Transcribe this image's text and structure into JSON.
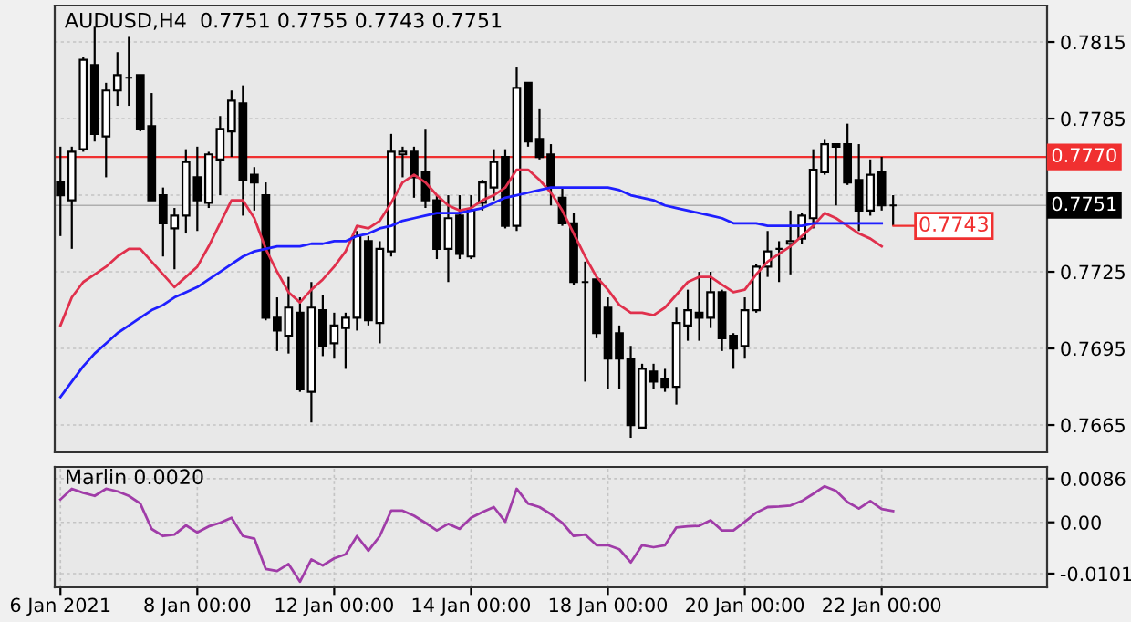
{
  "chart_data": [
    {
      "type": "candlestick",
      "title": "AUDUSD,H4  0.7751 0.7755 0.7743 0.7751",
      "categories": [
        null,
        null,
        null,
        null,
        null,
        null,
        null,
        null,
        null,
        null,
        null,
        null,
        null,
        null,
        null,
        null,
        null,
        null,
        null,
        null,
        null,
        null,
        null,
        null,
        null,
        null,
        null,
        null,
        null,
        null,
        null,
        null,
        null,
        null,
        null,
        null,
        null,
        null,
        null,
        null,
        null,
        null,
        null,
        null,
        null,
        null,
        null,
        null,
        null,
        null,
        null,
        null,
        null,
        null,
        null,
        null,
        null,
        null,
        null,
        null,
        null,
        null,
        null,
        null,
        null,
        null,
        null,
        null,
        null,
        null,
        null,
        null,
        null,
        null
      ],
      "ohlc": [
        [
          0.776,
          0.7774,
          0.7739,
          0.7755
        ],
        [
          0.7753,
          0.7774,
          0.7734,
          0.7772
        ],
        [
          0.7773,
          0.7809,
          0.7772,
          0.7808
        ],
        [
          0.7806,
          0.7821,
          0.7776,
          0.7779
        ],
        [
          0.7778,
          0.7799,
          0.7762,
          0.7796
        ],
        [
          0.7796,
          0.7811,
          0.779,
          0.7802
        ],
        [
          0.7801,
          0.7817,
          0.779,
          0.7801
        ],
        [
          0.7802,
          0.7802,
          0.778,
          0.7781
        ],
        [
          0.7782,
          0.7795,
          0.7753,
          0.7753
        ],
        [
          0.7755,
          0.7758,
          0.7731,
          0.7744
        ],
        [
          0.7742,
          0.775,
          0.7726,
          0.7747
        ],
        [
          0.7747,
          0.7773,
          0.774,
          0.7768
        ],
        [
          0.7762,
          0.7774,
          0.7741,
          0.7753
        ],
        [
          0.7752,
          0.7772,
          0.775,
          0.7771
        ],
        [
          0.7769,
          0.7786,
          0.7755,
          0.7781
        ],
        [
          0.778,
          0.7796,
          0.777,
          0.7792
        ],
        [
          0.7791,
          0.7798,
          0.7747,
          0.7761
        ],
        [
          0.7763,
          0.7766,
          0.7749,
          0.776
        ],
        [
          0.7755,
          0.776,
          0.7706,
          0.7707
        ],
        [
          0.7707,
          0.7715,
          0.7694,
          0.7702
        ],
        [
          0.77,
          0.7723,
          0.7693,
          0.7711
        ],
        [
          0.7709,
          0.7715,
          0.7678,
          0.7679
        ],
        [
          0.7678,
          0.7721,
          0.7666,
          0.7711
        ],
        [
          0.771,
          0.7716,
          0.7692,
          0.7696
        ],
        [
          0.7697,
          0.7709,
          0.7691,
          0.7704
        ],
        [
          0.7703,
          0.7709,
          0.7687,
          0.7707
        ],
        [
          0.7707,
          0.7741,
          0.7702,
          0.7739
        ],
        [
          0.7737,
          0.7739,
          0.7704,
          0.7706
        ],
        [
          0.7705,
          0.7737,
          0.7697,
          0.7734
        ],
        [
          0.7733,
          0.7779,
          0.7731,
          0.7772
        ],
        [
          0.7771,
          0.7774,
          0.7762,
          0.7772
        ],
        [
          0.7772,
          0.7774,
          0.7754,
          0.7762
        ],
        [
          0.7764,
          0.7781,
          0.775,
          0.7753
        ],
        [
          0.7753,
          0.7755,
          0.773,
          0.7734
        ],
        [
          0.7734,
          0.7755,
          0.7721,
          0.7746
        ],
        [
          0.7747,
          0.7755,
          0.773,
          0.7732
        ],
        [
          0.7731,
          0.7755,
          0.773,
          0.7749
        ],
        [
          0.7752,
          0.7761,
          0.7749,
          0.776
        ],
        [
          0.7758,
          0.7773,
          0.7753,
          0.7768
        ],
        [
          0.777,
          0.7773,
          0.7742,
          0.7743
        ],
        [
          0.7743,
          0.7805,
          0.7741,
          0.7797
        ],
        [
          0.7799,
          0.7799,
          0.7774,
          0.7776
        ],
        [
          0.7777,
          0.7789,
          0.7769,
          0.777
        ],
        [
          0.7771,
          0.7775,
          0.7751,
          0.7758
        ],
        [
          0.7754,
          0.7758,
          0.7743,
          0.7744
        ],
        [
          0.7744,
          0.7748,
          0.772,
          0.7721
        ],
        [
          0.7721,
          0.7729,
          0.7682,
          0.7721
        ],
        [
          0.7722,
          0.7722,
          0.7699,
          0.7701
        ],
        [
          0.7711,
          0.7715,
          0.7679,
          0.7691
        ],
        [
          0.7701,
          0.7704,
          0.7679,
          0.7691
        ],
        [
          0.7691,
          0.7696,
          0.766,
          0.7665
        ],
        [
          0.7664,
          0.7689,
          0.7664,
          0.7687
        ],
        [
          0.7686,
          0.7689,
          0.7679,
          0.7682
        ],
        [
          0.7683,
          0.7687,
          0.7678,
          0.768
        ],
        [
          0.768,
          0.7711,
          0.7673,
          0.7705
        ],
        [
          0.7704,
          0.7718,
          0.7698,
          0.771
        ],
        [
          0.7709,
          0.7725,
          0.7698,
          0.7707
        ],
        [
          0.7707,
          0.7725,
          0.7703,
          0.7717
        ],
        [
          0.7717,
          0.7718,
          0.7694,
          0.7699
        ],
        [
          0.77,
          0.7701,
          0.7687,
          0.7695
        ],
        [
          0.7696,
          0.7715,
          0.7691,
          0.771
        ],
        [
          0.771,
          0.7728,
          0.7709,
          0.7727
        ],
        [
          0.7727,
          0.7741,
          0.7723,
          0.7733
        ],
        [
          0.7734,
          0.7737,
          0.7721,
          0.7734
        ],
        [
          0.7736,
          0.7749,
          0.7724,
          0.7737
        ],
        [
          0.7738,
          0.7748,
          0.7736,
          0.7747
        ],
        [
          0.7746,
          0.7773,
          0.7742,
          0.7765
        ],
        [
          0.7764,
          0.7777,
          0.7763,
          0.7775
        ],
        [
          0.7775,
          0.7775,
          0.7751,
          0.7774
        ],
        [
          0.7775,
          0.7783,
          0.7759,
          0.776
        ],
        [
          0.7761,
          0.7775,
          0.7741,
          0.7749
        ],
        [
          0.7749,
          0.7769,
          0.7747,
          0.7763
        ],
        [
          0.7764,
          0.777,
          0.7749,
          0.7751
        ],
        [
          0.7751,
          0.7755,
          0.7743,
          0.7751
        ]
      ],
      "series": [
        {
          "type": "line",
          "color": "#e0304c",
          "values": [
            0.7704,
            0.7715,
            0.7721,
            0.7724,
            0.7727,
            0.7731,
            0.7734,
            0.7734,
            0.7729,
            0.7724,
            0.7719,
            0.7723,
            0.7727,
            0.7735,
            0.7744,
            0.7753,
            0.7753,
            0.7746,
            0.7734,
            0.7725,
            0.7717,
            0.7713,
            0.7718,
            0.7722,
            0.7727,
            0.7733,
            0.7743,
            0.7742,
            0.7745,
            0.7752,
            0.776,
            0.7763,
            0.776,
            0.7755,
            0.7751,
            0.7749,
            0.775,
            0.7753,
            0.7755,
            0.7758,
            0.7765,
            0.7765,
            0.7761,
            0.7756,
            0.7749,
            0.774,
            0.7731,
            0.7723,
            0.7718,
            0.7712,
            0.7709,
            0.7709,
            0.7708,
            0.7711,
            0.7716,
            0.7721,
            0.7723,
            0.7723,
            0.772,
            0.7717,
            0.7718,
            0.7724,
            0.7729,
            0.7732,
            0.7735,
            0.7739,
            0.7743,
            0.7748,
            0.7746,
            0.7743,
            0.774,
            0.7738,
            0.7735,
            null
          ]
        },
        {
          "type": "line",
          "color": "#1f1fff",
          "values": [
            0.7676,
            0.7682,
            0.7688,
            0.7693,
            0.7697,
            0.7701,
            0.7704,
            0.7707,
            0.771,
            0.7712,
            0.7715,
            0.7717,
            0.7719,
            0.7722,
            0.7725,
            0.7728,
            0.7731,
            0.7733,
            0.7734,
            0.7735,
            0.7735,
            0.7735,
            0.7736,
            0.7736,
            0.7737,
            0.7737,
            0.7739,
            0.774,
            0.7742,
            0.7743,
            0.7745,
            0.7746,
            0.7747,
            0.7748,
            0.7748,
            0.7748,
            0.7749,
            0.775,
            0.7752,
            0.7754,
            0.7755,
            0.7756,
            0.7757,
            0.7758,
            0.7758,
            0.7758,
            0.7758,
            0.7758,
            0.7758,
            0.7757,
            0.7755,
            0.7754,
            0.7753,
            0.7751,
            0.775,
            0.7749,
            0.7748,
            0.7747,
            0.7746,
            0.7744,
            0.7744,
            0.7744,
            0.7743,
            0.7743,
            0.7743,
            0.7743,
            0.7744,
            0.7744,
            0.7744,
            0.7744,
            0.7744,
            0.7744,
            0.7744,
            null
          ]
        }
      ],
      "ylim": [
        0.76543,
        0.78293
      ],
      "yticks": [
        0.7665,
        0.7695,
        0.7725,
        {
          "value": 0.7755,
          "label": null
        },
        0.7785,
        0.7815
      ],
      "ref_lines": [
        {
          "axis": "y",
          "value": 0.777,
          "label": "0.7770",
          "color": "#f03030"
        },
        {
          "axis": "y",
          "value": 0.7751,
          "label": "0.7751",
          "color": "#000000"
        }
      ],
      "annotations": [
        "0.7743"
      ],
      "grid": true
    },
    {
      "type": "line",
      "title": "Marlin 0.0020",
      "categories": [
        "6 Jan 2021",
        null,
        null,
        null,
        null,
        null,
        null,
        null,
        null,
        null,
        null,
        null,
        "8 Jan 00:00",
        null,
        null,
        null,
        null,
        null,
        null,
        null,
        null,
        null,
        null,
        null,
        "12 Jan 00:00",
        null,
        null,
        null,
        null,
        null,
        null,
        null,
        null,
        null,
        null,
        null,
        "14 Jan 00:00",
        null,
        null,
        null,
        null,
        null,
        null,
        null,
        null,
        null,
        null,
        null,
        "18 Jan 00:00",
        null,
        null,
        null,
        null,
        null,
        null,
        null,
        null,
        null,
        null,
        null,
        "20 Jan 00:00",
        null,
        null,
        null,
        null,
        null,
        null,
        null,
        null,
        null,
        null,
        null,
        "22 Jan 00:00",
        null
      ],
      "series": [
        {
          "color": "#a03ca8",
          "values": [
            0.0045,
            0.0066,
            0.0058,
            0.0052,
            0.0066,
            0.0061,
            0.0052,
            0.0037,
            -0.0013,
            -0.0027,
            -0.0024,
            -0.0006,
            -0.002,
            -0.0008,
            -0.0001,
            0.0009,
            -0.0027,
            -0.0032,
            -0.0092,
            -0.0096,
            -0.0082,
            -0.0117,
            -0.0073,
            -0.0085,
            -0.0071,
            -0.0063,
            -0.0027,
            -0.0056,
            -0.0027,
            0.0023,
            0.0023,
            0.0013,
            -0.0001,
            -0.0016,
            -0.0003,
            -0.0013,
            0.0009,
            0.002,
            0.003,
            0.0001,
            0.0066,
            0.0037,
            0.003,
            0.0016,
            -0.0001,
            -0.0027,
            -0.0024,
            -0.0045,
            -0.0045,
            -0.0053,
            -0.0079,
            -0.0045,
            -0.0049,
            -0.0045,
            -0.001,
            -0.0008,
            -0.0007,
            0.0004,
            -0.0016,
            -0.0016,
            0.0001,
            0.0019,
            0.003,
            0.0031,
            0.0033,
            0.0042,
            0.0056,
            0.0071,
            0.0062,
            0.004,
            0.0027,
            0.0042,
            0.0026,
            0.0022
          ]
        }
      ],
      "ylim": [
        -0.0128,
        0.0109
      ],
      "yticks": [
        0.0086,
        {
          "value": 0,
          "label": "0.00"
        },
        -0.0101
      ],
      "grid": true
    }
  ]
}
